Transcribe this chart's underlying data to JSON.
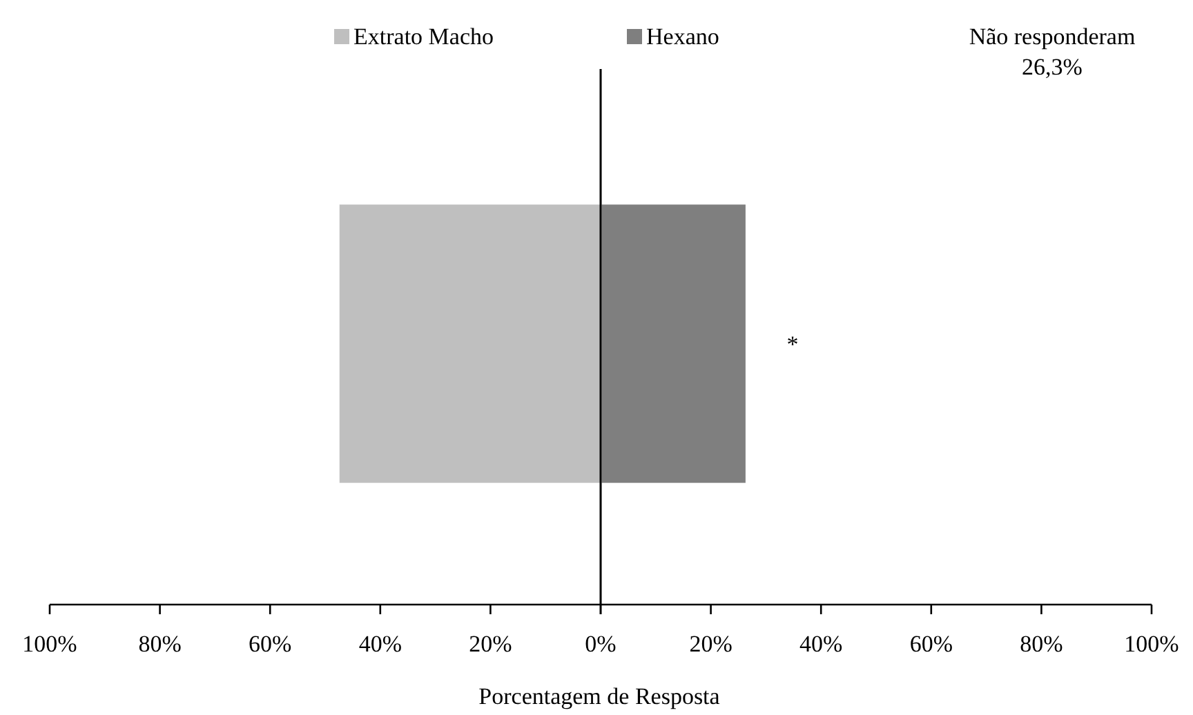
{
  "chart_data": [
    {
      "type": "bar",
      "orientation": "horizontal",
      "categories": [
        null
      ],
      "series": [
        {
          "name": "Extrato Macho",
          "color": "#bfbfbf",
          "values": [
            47.4
          ]
        }
      ],
      "xlim": [
        100,
        0
      ],
      "xticks": [
        {
          "value": 100,
          "label": "100%"
        },
        {
          "value": 80,
          "label": "80%"
        },
        {
          "value": 60,
          "label": "60%"
        },
        {
          "value": 40,
          "label": "40%"
        },
        {
          "value": 20,
          "label": "20%"
        },
        {
          "value": 0,
          "label": null
        }
      ],
      "legend": "top",
      "grid": false
    },
    {
      "type": "bar",
      "orientation": "horizontal",
      "categories": [
        null
      ],
      "series": [
        {
          "name": "Hexano",
          "color": "#7f7f7f",
          "values": [
            26.3
          ]
        }
      ],
      "xlabel": "Porcentagem de Resposta",
      "xlim": [
        0,
        100
      ],
      "xticks": [
        {
          "value": 0,
          "label": "0%"
        },
        {
          "value": 20,
          "label": "20%"
        },
        {
          "value": 40,
          "label": "40%"
        },
        {
          "value": 60,
          "label": "60%"
        },
        {
          "value": 80,
          "label": "80%"
        },
        {
          "value": 100,
          "label": "100%"
        }
      ],
      "annotations": [
        "Não responderam\n26,3%",
        "*"
      ],
      "legend": "top",
      "grid": false
    }
  ]
}
